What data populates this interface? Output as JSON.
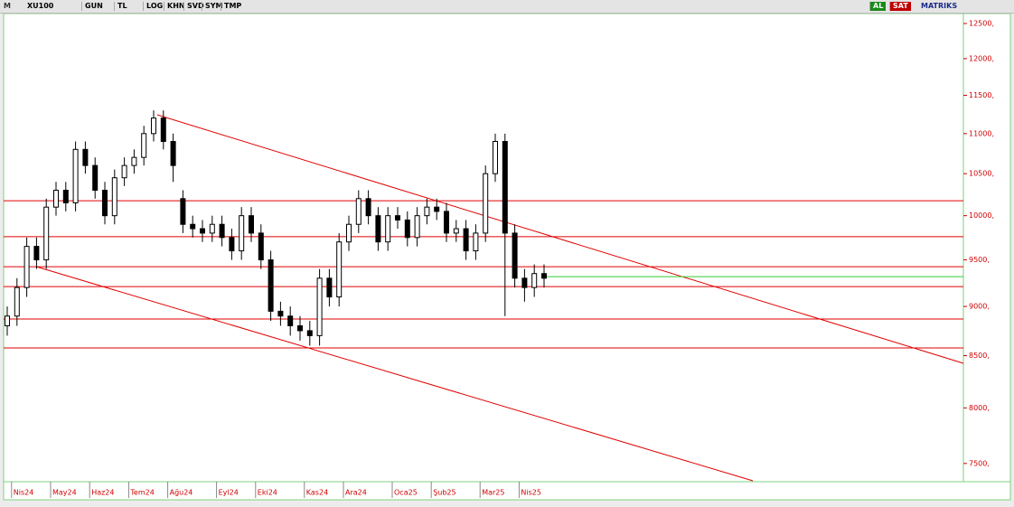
{
  "toolbar": {
    "logo": "M",
    "symbol": "XU100",
    "buttons": [
      "GUN",
      "TL",
      "LOG",
      "KHN",
      "SVD",
      "SYM",
      "TMP"
    ],
    "actions": [
      "AL",
      "SAT"
    ],
    "brand": "MATRIKS"
  },
  "chart_data": {
    "type": "candlestick",
    "log_scale": true,
    "categories": [
      null,
      "Nis24",
      null,
      null,
      null,
      "May24",
      null,
      null,
      null,
      "Haz24",
      null,
      null,
      null,
      "Tem24",
      null,
      null,
      null,
      "Ağu24",
      null,
      null,
      null,
      null,
      "Eyl24",
      null,
      null,
      null,
      "Eki24",
      null,
      null,
      null,
      null,
      "Kas24",
      null,
      null,
      null,
      "Ara24",
      null,
      null,
      null,
      null,
      "Oca25",
      null,
      null,
      null,
      "Şub25",
      null,
      null,
      null,
      null,
      "Mar25",
      null,
      null,
      null,
      "Nis25",
      null,
      null
    ],
    "open": [
      8800,
      8900,
      9200,
      9650,
      9500,
      10100,
      10300,
      10150,
      10800,
      10600,
      10300,
      10000,
      10450,
      10600,
      10700,
      11000,
      11200,
      10900,
      10200,
      9900,
      9850,
      9800,
      9900,
      9750,
      9600,
      10000,
      9800,
      9500,
      8950,
      8900,
      8800,
      8750,
      8700,
      9300,
      9100,
      9700,
      9900,
      10200,
      10000,
      9700,
      10000,
      9950,
      9750,
      10000,
      10100,
      10050,
      9800,
      9850,
      9600,
      9800,
      10500,
      10900,
      9800,
      9300,
      9200,
      9350
    ],
    "high": [
      9000,
      9300,
      9750,
      9750,
      10200,
      10400,
      10400,
      10900,
      10900,
      10700,
      10400,
      10550,
      10700,
      10800,
      11100,
      11300,
      11300,
      11000,
      10300,
      10000,
      9950,
      10000,
      10000,
      9850,
      10100,
      10100,
      9900,
      9600,
      9050,
      9000,
      8900,
      8850,
      9400,
      9400,
      9800,
      10000,
      10300,
      10300,
      10100,
      10100,
      10100,
      10050,
      10100,
      10200,
      10200,
      10150,
      9950,
      9950,
      9900,
      10600,
      11000,
      11000,
      9900,
      9400,
      9450,
      9450
    ],
    "low": [
      8700,
      8800,
      9100,
      9400,
      9400,
      10000,
      10050,
      10050,
      10500,
      10200,
      9900,
      9900,
      10350,
      10500,
      10600,
      10900,
      10800,
      10400,
      9800,
      9750,
      9700,
      9700,
      9650,
      9500,
      9500,
      9700,
      9400,
      8850,
      8800,
      8700,
      8650,
      8600,
      8600,
      9000,
      9000,
      9600,
      9800,
      9900,
      9600,
      9600,
      9850,
      9650,
      9650,
      9900,
      9950,
      9700,
      9700,
      9500,
      9500,
      9700,
      10400,
      8900,
      9200,
      9050,
      9100,
      9200
    ],
    "close": [
      8900,
      9200,
      9650,
      9500,
      10100,
      10300,
      10150,
      10800,
      10600,
      10300,
      10000,
      10450,
      10600,
      10700,
      11000,
      11200,
      10900,
      10600,
      9900,
      9850,
      9800,
      9900,
      9750,
      9600,
      10000,
      9800,
      9500,
      8950,
      8900,
      8800,
      8750,
      8700,
      9300,
      9100,
      9700,
      9900,
      10200,
      10000,
      9700,
      10000,
      9950,
      9750,
      10000,
      10100,
      10050,
      9800,
      9850,
      9600,
      9800,
      10500,
      10900,
      9800,
      9300,
      9200,
      9350,
      9300
    ],
    "color": "#000000",
    "levels": [
      10175,
      9759,
      9425,
      9210,
      8870,
      8577
    ],
    "level_color": "#e00000",
    "reference_line": {
      "value": 9317,
      "color": "#33cc33"
    },
    "ylim": [
      7343,
      12645
    ],
    "yticks": [
      {
        "value": 12500,
        "label": "12500,"
      },
      {
        "value": 12000,
        "label": "12000,"
      },
      {
        "value": 11500,
        "label": "11500,"
      },
      {
        "value": 11000,
        "label": "11000,"
      },
      {
        "value": 10500,
        "label": "10500,"
      },
      {
        "value": 10000,
        "label": "10000,"
      },
      {
        "value": 9500,
        "label": "9500,"
      },
      {
        "value": 9000,
        "label": "9000,"
      },
      {
        "value": 8500,
        "label": "8500,"
      },
      {
        "value": 8000,
        "label": "8000,"
      },
      {
        "value": 7500,
        "label": "7500,"
      }
    ]
  }
}
